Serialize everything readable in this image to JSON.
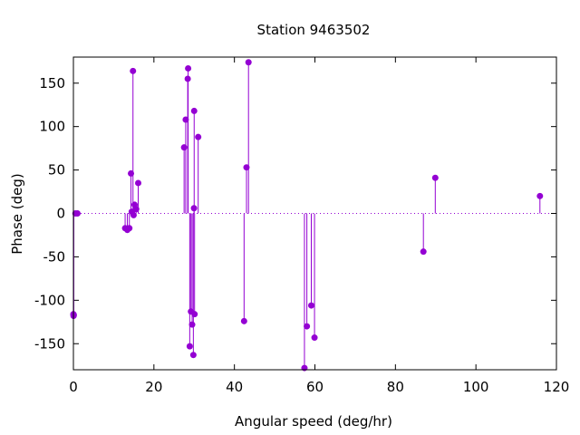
{
  "chart_data": {
    "type": "scatter",
    "style": "impulses with points",
    "title": "Station 9463502",
    "xlabel": "Angular speed (deg/hr)",
    "ylabel": "Phase (deg)",
    "xlim": [
      0,
      120
    ],
    "ylim": [
      -180,
      180
    ],
    "xticks": [
      "0",
      "20",
      "40",
      "60",
      "80",
      "100",
      "120"
    ],
    "xtick_values": [
      0,
      20,
      40,
      60,
      80,
      100,
      120
    ],
    "yticks": [
      "-150",
      "-100",
      "-50",
      "0",
      "50",
      "100",
      "150"
    ],
    "ytick_values": [
      -150,
      -100,
      -50,
      0,
      50,
      100,
      150
    ],
    "zero_line": "dotted",
    "grid": false,
    "color": "#9400d3",
    "points": [
      {
        "x": 0.0,
        "y": -116
      },
      {
        "x": 0.04,
        "y": -118
      },
      {
        "x": 0.08,
        "y": -117
      },
      {
        "x": 0.5,
        "y": 0
      },
      {
        "x": 1.0,
        "y": 0
      },
      {
        "x": 12.85,
        "y": -17
      },
      {
        "x": 13.4,
        "y": -19
      },
      {
        "x": 13.9,
        "y": -17
      },
      {
        "x": 14.3,
        "y": 46
      },
      {
        "x": 14.5,
        "y": 2
      },
      {
        "x": 14.8,
        "y": 164
      },
      {
        "x": 14.96,
        "y": -2
      },
      {
        "x": 15.2,
        "y": 10
      },
      {
        "x": 15.6,
        "y": 5
      },
      {
        "x": 16.1,
        "y": 35
      },
      {
        "x": 27.5,
        "y": 76
      },
      {
        "x": 27.9,
        "y": 108
      },
      {
        "x": 28.4,
        "y": 155
      },
      {
        "x": 28.5,
        "y": 167
      },
      {
        "x": 28.9,
        "y": -153
      },
      {
        "x": 29.2,
        "y": -113
      },
      {
        "x": 29.5,
        "y": -128
      },
      {
        "x": 29.8,
        "y": -163
      },
      {
        "x": 29.96,
        "y": 6
      },
      {
        "x": 30.0,
        "y": 118
      },
      {
        "x": 30.1,
        "y": -116
      },
      {
        "x": 31.0,
        "y": 88
      },
      {
        "x": 42.4,
        "y": -124
      },
      {
        "x": 43.0,
        "y": 53
      },
      {
        "x": 43.5,
        "y": 174
      },
      {
        "x": 57.4,
        "y": -178
      },
      {
        "x": 58.0,
        "y": -130
      },
      {
        "x": 59.1,
        "y": -106
      },
      {
        "x": 59.9,
        "y": -143
      },
      {
        "x": 86.95,
        "y": -44
      },
      {
        "x": 89.9,
        "y": 41
      },
      {
        "x": 115.9,
        "y": 20
      }
    ]
  }
}
